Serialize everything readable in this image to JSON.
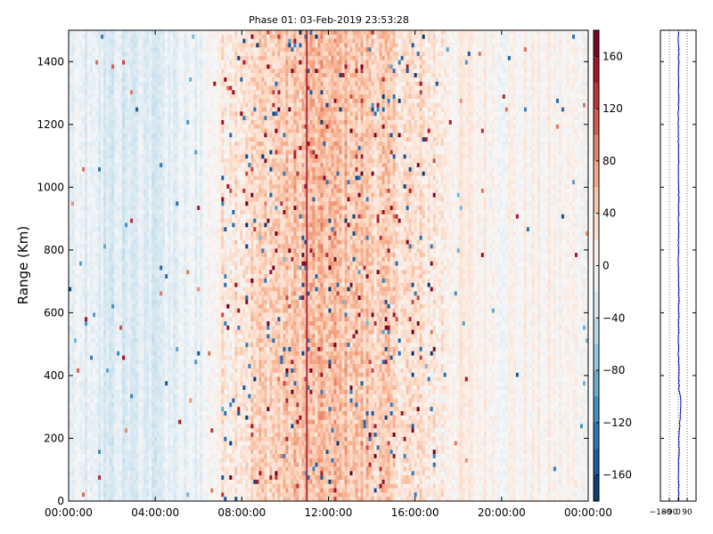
{
  "chart_data": [
    {
      "type": "heatmap",
      "title": "Phase 01: 03-Feb-2019 23:53:28",
      "xlabel": "",
      "ylabel": "Range (Km)",
      "x_ticks": [
        "00:00:00",
        "04:00:00",
        "08:00:00",
        "12:00:00",
        "16:00:00",
        "20:00:00",
        "00:00:00"
      ],
      "x_range": [
        "00:00:00",
        "24:00:00"
      ],
      "y_ticks": [
        0,
        200,
        400,
        600,
        800,
        1000,
        1200,
        1400
      ],
      "ylim": [
        0,
        1500
      ],
      "colorbar": {
        "colormap": "RdBu_r",
        "range": [
          -180,
          180
        ],
        "ticks": [
          160,
          120,
          80,
          40,
          0,
          -40,
          -80,
          -120,
          -160
        ],
        "tick_labels": [
          "160",
          "120",
          "80",
          "40",
          "0",
          "−40",
          "−80",
          "−120",
          "−160"
        ]
      },
      "approx_mean_phase_by_time": [
        {
          "time": "00:00:00",
          "phase": -15
        },
        {
          "time": "02:00:00",
          "phase": -25
        },
        {
          "time": "04:00:00",
          "phase": -25
        },
        {
          "time": "06:00:00",
          "phase": -10
        },
        {
          "time": "07:30:00",
          "phase": 25
        },
        {
          "time": "10:00:00",
          "phase": 45
        },
        {
          "time": "12:00:00",
          "phase": 55
        },
        {
          "time": "14:00:00",
          "phase": 45
        },
        {
          "time": "16:00:00",
          "phase": 25
        },
        {
          "time": "17:30:00",
          "phase": 15
        },
        {
          "time": "20:00:00",
          "phase": 5
        },
        {
          "time": "24:00:00",
          "phase": 5
        }
      ],
      "colors": {
        "negative": "#053061",
        "zero": "#f7f7f7",
        "positive": "#67001f"
      }
    },
    {
      "type": "line",
      "x_ticks": [
        "−180",
        "−90",
        "0",
        "90"
      ],
      "xlim": [
        -180,
        180
      ],
      "ylim": [
        0,
        1500
      ],
      "grid": "vertical dotted",
      "profile": [
        {
          "range": 0,
          "phase": 5
        },
        {
          "range": 100,
          "phase": 3
        },
        {
          "range": 200,
          "phase": 8
        },
        {
          "range": 280,
          "phase": 20
        },
        {
          "range": 300,
          "phase": 30
        },
        {
          "range": 320,
          "phase": 25
        },
        {
          "range": 350,
          "phase": 10
        },
        {
          "range": 400,
          "phase": 5
        },
        {
          "range": 500,
          "phase": 2
        },
        {
          "range": 600,
          "phase": 5
        },
        {
          "range": 800,
          "phase": 3
        },
        {
          "range": 1000,
          "phase": 5
        },
        {
          "range": 1200,
          "phase": 2
        },
        {
          "range": 1400,
          "phase": 5
        },
        {
          "range": 1500,
          "phase": 3
        }
      ],
      "line_color": "#0000cc"
    }
  ]
}
